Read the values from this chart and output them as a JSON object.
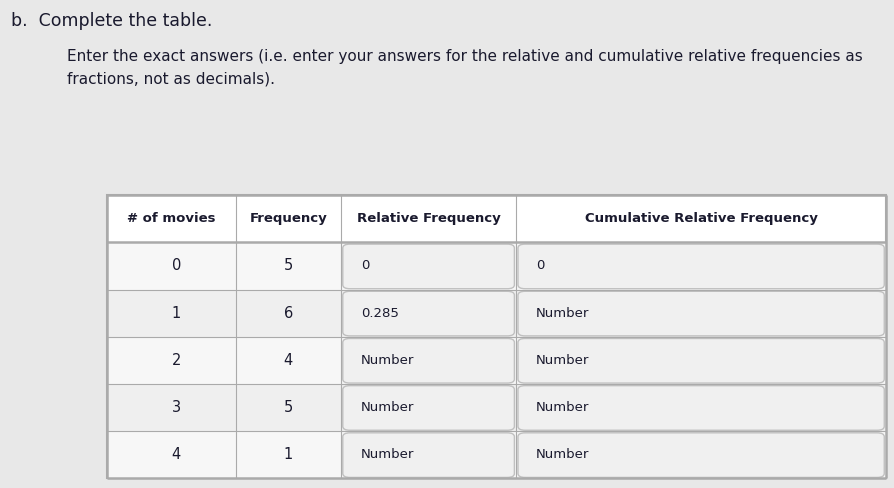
{
  "title_b": "b.  Complete the table.",
  "subtitle": "Enter the exact answers (i.e. enter your answers for the relative and cumulative relative frequencies as\nfractions, not as decimals).",
  "col_headers": [
    "# of movies",
    "Frequency",
    "Relative Frequency",
    "Cumulative Relative Frequency"
  ],
  "rows": [
    [
      "0",
      "5",
      "0",
      "0"
    ],
    [
      "1",
      "6",
      "0.285",
      "Number"
    ],
    [
      "2",
      "4",
      "Number",
      "Number"
    ],
    [
      "3",
      "5",
      "Number",
      "Number"
    ],
    [
      "4",
      "1",
      "Number",
      "Number"
    ]
  ],
  "input_cols": [
    2,
    3
  ],
  "page_bg": "#e8e8e8",
  "table_bg": "#ffffff",
  "header_bg": "#ffffff",
  "row_bg_even": "#f7f7f7",
  "row_bg_odd": "#efefef",
  "input_box_bg": "#e8e8e8",
  "input_box_border": "#c0c0c0",
  "border_color": "#aaaaaa",
  "text_color": "#1a1a2e",
  "header_text_color": "#1a1a2e"
}
